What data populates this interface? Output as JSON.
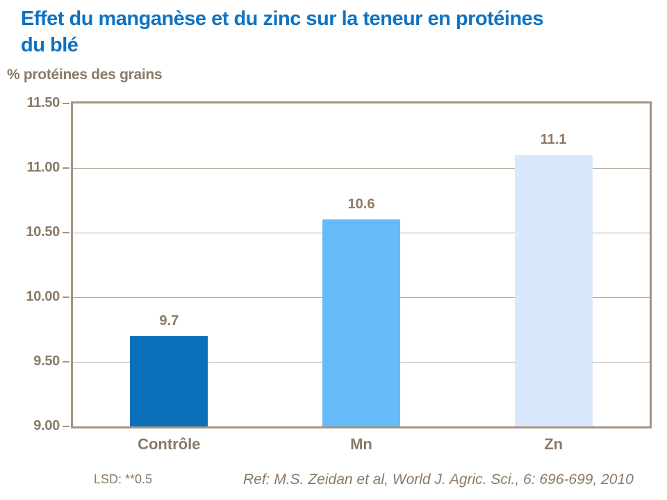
{
  "header": {
    "title_lines": [
      "Effet du manganèse et du zinc sur la teneur en protéines",
      "du blé"
    ]
  },
  "chart_data": {
    "type": "bar",
    "title": "Effet du manganèse et du zinc sur la teneur en protéines du blé",
    "xlabel": "",
    "ylabel": "% protéines des grains",
    "categories": [
      "Contrôle",
      "Mn",
      "Zn"
    ],
    "values": [
      9.7,
      10.6,
      11.1
    ],
    "value_labels": [
      "9.7",
      "10.6",
      "11.1"
    ],
    "bar_colors": [
      "#0a70b9",
      "#66baf9",
      "#d9e9fb"
    ],
    "ylim": [
      9.0,
      11.5
    ],
    "ytick_step": 0.5,
    "ytick_labels": [
      "11.50",
      "11.00",
      "10.50",
      "10.00",
      "9.50",
      "9.00"
    ],
    "grid": true,
    "legend": false,
    "annotations": [
      "LSD: **0.5"
    ]
  },
  "footnotes": {
    "lsd": "LSD: **0.5",
    "reference": "Ref: M.S. Zeidan et al, World J. Agric. Sci., 6: 696-699, 2010"
  },
  "colors": {
    "title_blue": "#0f72c2",
    "text_taupe": "#8b7a66",
    "axis": "#a39381",
    "grid": "#b7aa9a"
  }
}
